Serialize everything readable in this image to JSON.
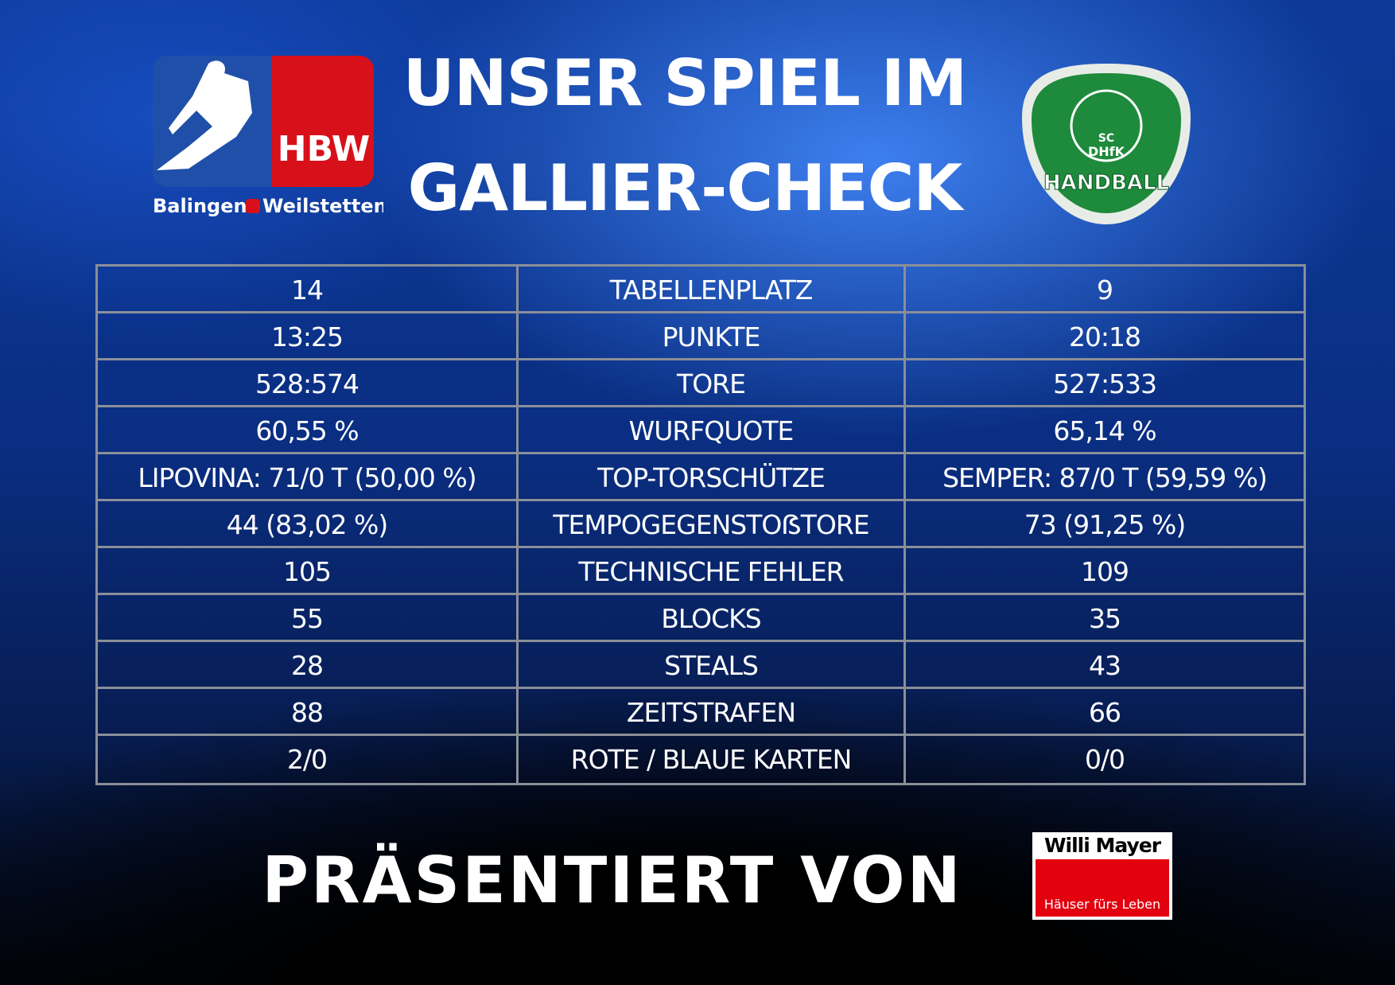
{
  "header": {
    "title_lines": [
      "UNSER SPIEL IM",
      "GALLIER-CHECK"
    ]
  },
  "home_logo": {
    "abbr": "HBW",
    "city1": "Balingen",
    "city2": "Weilstetten"
  },
  "away_logo": {
    "top": "SC",
    "middle": "DHfK",
    "bottom": "HANDBALL"
  },
  "table": {
    "rows": [
      [
        "14",
        "TABELLENPLATZ",
        "9"
      ],
      [
        "13:25",
        "PUNKTE",
        "20:18"
      ],
      [
        "528:574",
        "TORE",
        "527:533"
      ],
      [
        "60,55 %",
        "WURFQUOTE",
        "65,14 %"
      ],
      [
        "LIPOVINA: 71/0 T (50,00 %)",
        "TOP-TORSCHÜTZE",
        "SEMPER: 87/0 T (59,59 %)"
      ],
      [
        "44 (83,02 %)",
        "TEMPOGEGENSTOẞTORE",
        "73 (91,25 %)"
      ],
      [
        "105",
        "TECHNISCHE FEHLER",
        "109"
      ],
      [
        "55",
        "BLOCKS",
        "35"
      ],
      [
        "28",
        "STEALS",
        "43"
      ],
      [
        "88",
        "ZEITSTRAFEN",
        "66"
      ],
      [
        "2/0",
        "ROTE / BLAUE KARTEN",
        "0/0"
      ]
    ]
  },
  "footer": {
    "text": "PRÄSENTIERT VON"
  },
  "sponsor": {
    "name": "Willi Mayer",
    "slogan": "Häuser fürs Leben"
  }
}
